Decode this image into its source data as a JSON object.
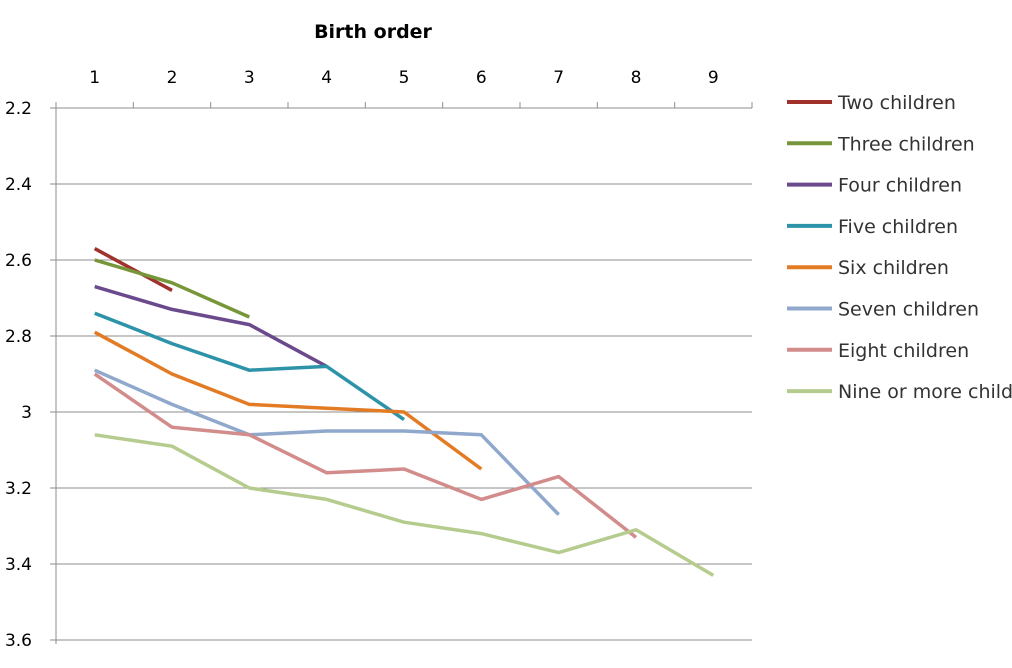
{
  "chart_data": {
    "type": "line",
    "title": "",
    "xlabel": "Birth order",
    "ylabel": "",
    "x_ticks": [
      "1",
      "2",
      "3",
      "4",
      "5",
      "6",
      "7",
      "8",
      "9"
    ],
    "y_ticks": [
      "2.2",
      "2.4",
      "2.6",
      "2.8",
      "3",
      "3.2",
      "3.4",
      "3.6"
    ],
    "ylim": [
      2.2,
      3.6
    ],
    "y_inverted": true,
    "x_axis_position": "top",
    "grid": "horizontal",
    "legend_position": "right",
    "series": [
      {
        "name": "Two children",
        "color": "#A0312D",
        "x": [
          1,
          2
        ],
        "y": [
          2.57,
          2.68
        ]
      },
      {
        "name": "Three children",
        "color": "#77963A",
        "x": [
          1,
          2,
          3
        ],
        "y": [
          2.6,
          2.66,
          2.75
        ]
      },
      {
        "name": "Four children",
        "color": "#6A4A8C",
        "x": [
          1,
          2,
          3,
          4
        ],
        "y": [
          2.67,
          2.73,
          2.77,
          2.88
        ]
      },
      {
        "name": "Five children",
        "color": "#2D93A8",
        "x": [
          1,
          2,
          3,
          4,
          5
        ],
        "y": [
          2.74,
          2.82,
          2.89,
          2.88,
          3.02
        ]
      },
      {
        "name": "Six children",
        "color": "#E37B24",
        "x": [
          1,
          2,
          3,
          4,
          5,
          6
        ],
        "y": [
          2.79,
          2.9,
          2.98,
          2.99,
          3.0,
          3.15
        ]
      },
      {
        "name": "Seven children",
        "color": "#8FA8CC",
        "x": [
          1,
          2,
          3,
          4,
          5,
          6,
          7
        ],
        "y": [
          2.89,
          2.98,
          3.06,
          3.05,
          3.05,
          3.06,
          3.27
        ]
      },
      {
        "name": "Eight children",
        "color": "#D28C8C",
        "x": [
          1,
          2,
          3,
          4,
          5,
          6,
          7,
          8
        ],
        "y": [
          2.9,
          3.04,
          3.06,
          3.16,
          3.15,
          3.23,
          3.17,
          3.33
        ]
      },
      {
        "name": "Nine or more children",
        "color": "#B5CC8E",
        "x": [
          1,
          2,
          3,
          4,
          5,
          6,
          7,
          8,
          9
        ],
        "y": [
          3.06,
          3.09,
          3.2,
          3.23,
          3.29,
          3.32,
          3.37,
          3.31,
          3.43
        ]
      }
    ]
  }
}
